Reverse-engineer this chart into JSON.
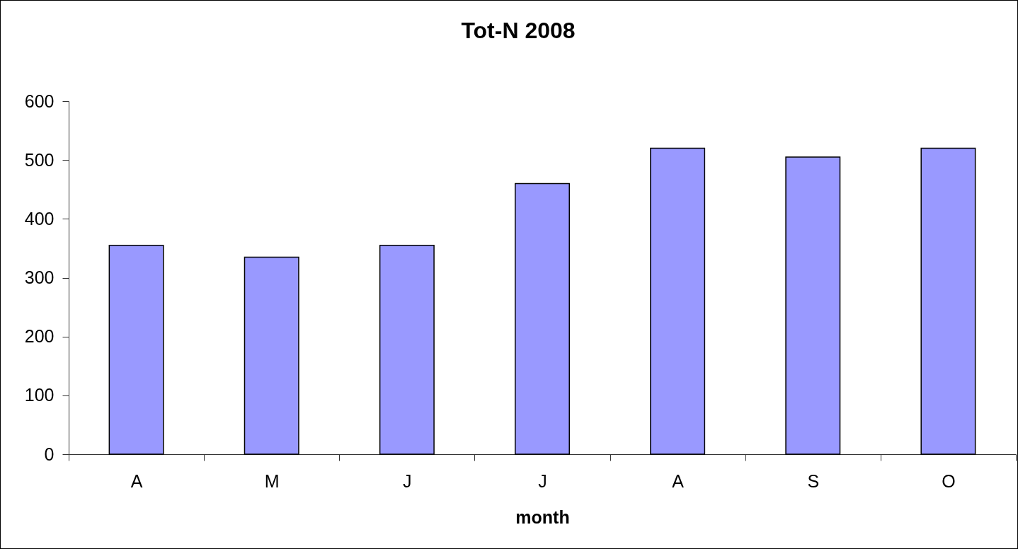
{
  "chart_data": {
    "type": "bar",
    "title": "Tot-N 2008",
    "xlabel": "month",
    "categories": [
      "A",
      "M",
      "J",
      "J",
      "A",
      "S",
      "O"
    ],
    "values": [
      355,
      335,
      355,
      460,
      520,
      505,
      520
    ],
    "color": "#9999ff",
    "ylim": [
      0,
      600
    ],
    "yticks": [
      0,
      100,
      200,
      300,
      400,
      500,
      600
    ],
    "grid": false
  }
}
